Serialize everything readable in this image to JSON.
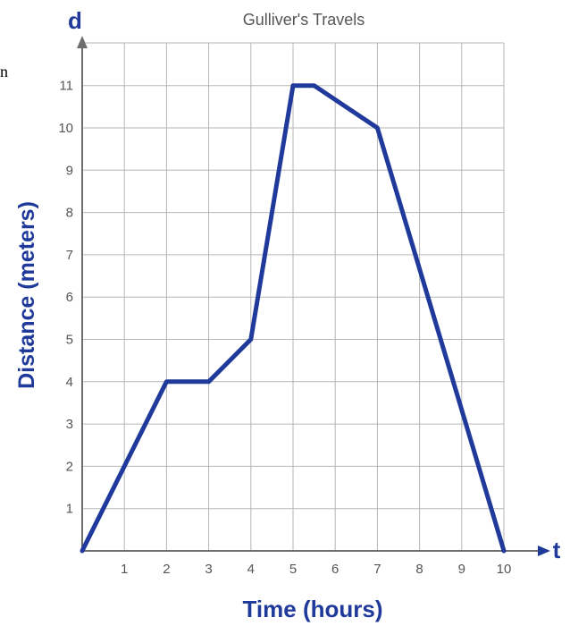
{
  "chart_data": {
    "type": "line",
    "title": "Gulliver's Travels",
    "xlabel": "Time (hours)",
    "ylabel": "Distance (meters)",
    "x_axis_letter": "t",
    "y_axis_letter": "d",
    "stray_text": "n",
    "xlim": [
      0,
      10
    ],
    "ylim": [
      0,
      11
    ],
    "x_ticks": [
      1,
      2,
      3,
      4,
      5,
      6,
      7,
      8,
      9,
      10
    ],
    "y_ticks": [
      1,
      2,
      3,
      4,
      5,
      6,
      7,
      8,
      9,
      10,
      11
    ],
    "x_tick_labels": [
      "1",
      "2",
      "3",
      "4",
      "5",
      "6",
      "7",
      "8",
      "9",
      "10"
    ],
    "y_tick_labels": [
      "1",
      "2",
      "3",
      "4",
      "5",
      "6",
      "7",
      "8",
      "9",
      "10",
      "11"
    ],
    "grid": true,
    "series": [
      {
        "x": [
          0,
          2,
          3,
          4,
          5,
          5.5,
          7,
          10
        ],
        "y": [
          0,
          4,
          4,
          5,
          11,
          11,
          10,
          0
        ]
      }
    ]
  }
}
